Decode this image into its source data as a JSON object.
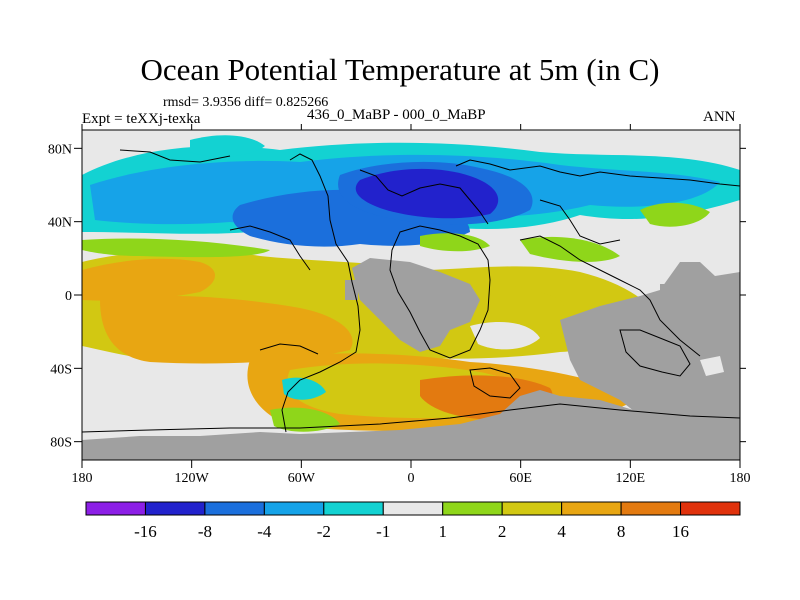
{
  "header": {
    "title": "Ocean Potential Temperature at 5m (in C)",
    "stats": "rmsd= 3.9356 diff= 0.825266",
    "experiment": "Expt = teXXj-texka",
    "subtitle": "436_0_MaBP - 000_0_MaBP",
    "season": "ANN"
  },
  "map": {
    "projection": "cylindrical-equidistant",
    "lon_range": [
      -180,
      180
    ],
    "lat_range": [
      -90,
      90
    ],
    "x_ticks": [
      {
        "lon": -180,
        "label": "180"
      },
      {
        "lon": -120,
        "label": "120W"
      },
      {
        "lon": -60,
        "label": "60W"
      },
      {
        "lon": 0,
        "label": "0"
      },
      {
        "lon": 60,
        "label": "60E"
      },
      {
        "lon": 120,
        "label": "120E"
      },
      {
        "lon": 180,
        "label": "180"
      }
    ],
    "y_ticks": [
      {
        "lat": 80,
        "label": "80N"
      },
      {
        "lat": 40,
        "label": "40N"
      },
      {
        "lat": 0,
        "label": "0"
      },
      {
        "lat": -40,
        "label": "40S"
      },
      {
        "lat": -80,
        "label": "80S"
      }
    ],
    "land_color": "#a0a0a0"
  },
  "colorbar": {
    "bins": [
      {
        "color": "#8c1fe6",
        "label": ""
      },
      {
        "color": "#2222cc",
        "label": "-16"
      },
      {
        "color": "#1b6fdc",
        "label": "-8"
      },
      {
        "color": "#16a3e8",
        "label": "-4"
      },
      {
        "color": "#13d2d2",
        "label": "-2"
      },
      {
        "color": "#e8e8e8",
        "label": "-1"
      },
      {
        "color": "#8fd61a",
        "label": "1"
      },
      {
        "color": "#d2c812",
        "label": "2"
      },
      {
        "color": "#e8a612",
        "label": "4"
      },
      {
        "color": "#e37a10",
        "label": "8"
      },
      {
        "color": "#e0320c",
        "label": "16"
      }
    ]
  }
}
